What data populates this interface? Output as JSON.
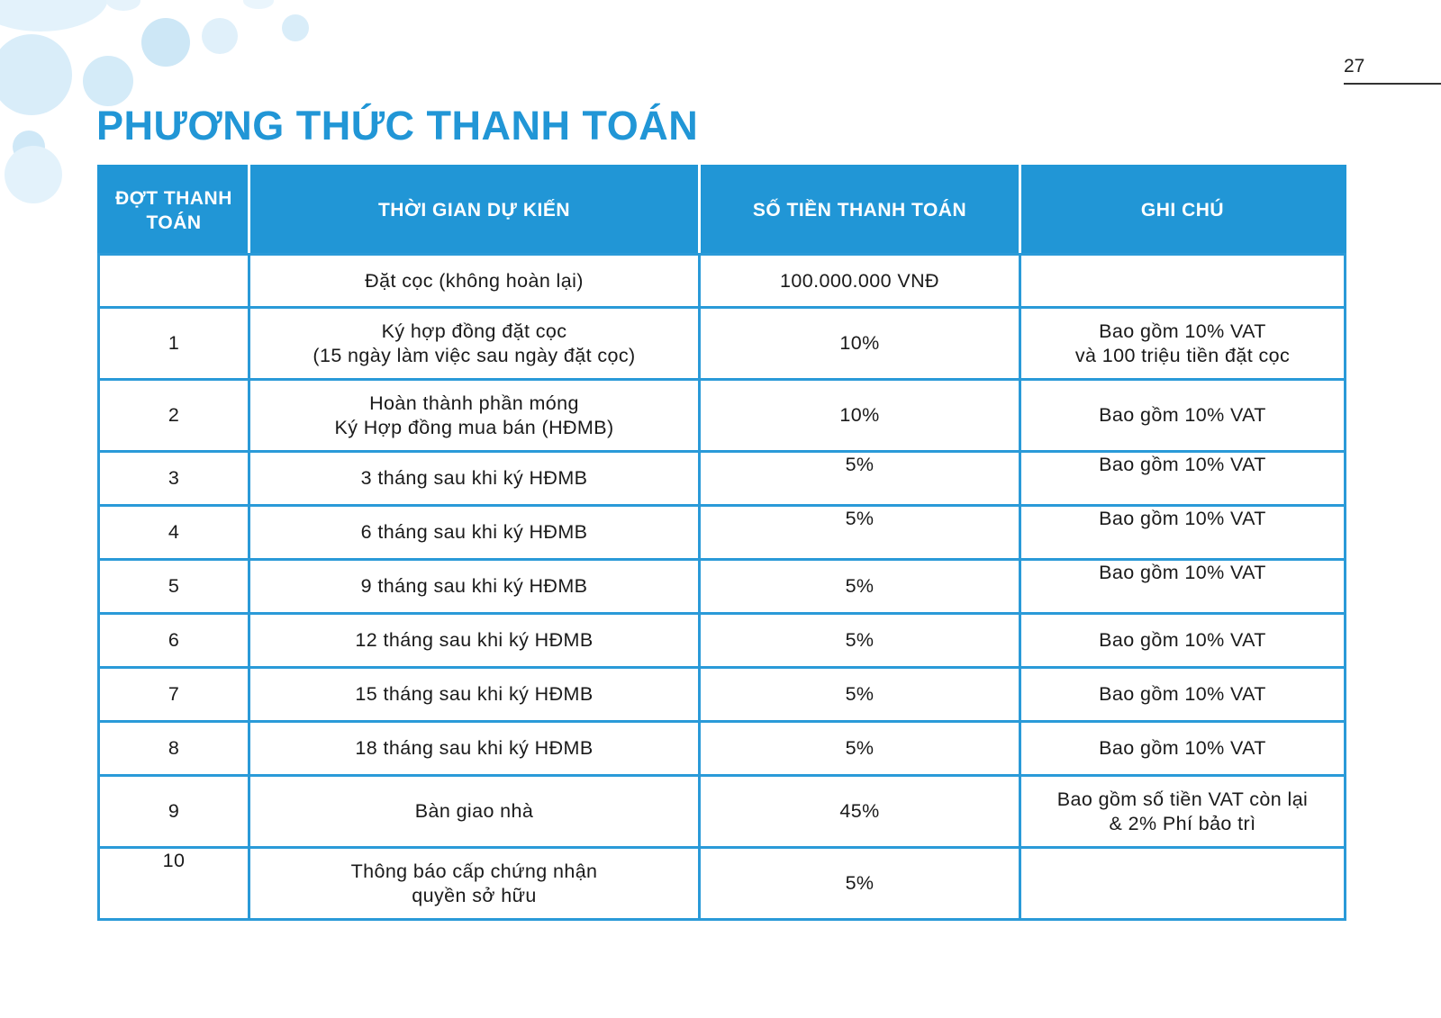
{
  "page_number": "27",
  "title": "PHƯƠNG THỨC THANH TOÁN",
  "table": {
    "headers": [
      "ĐỢT THANH TOÁN",
      "THỜI GIAN DỰ KIẾN",
      "SỐ TIỀN THANH TOÁN",
      "GHI CHÚ"
    ],
    "rows": [
      {
        "phase": "",
        "time": [
          "Đặt cọc (không hoàn lại)"
        ],
        "amount": "100.000.000 VNĐ",
        "note": []
      },
      {
        "phase": "1",
        "time": [
          "Ký hợp đồng đặt cọc",
          "(15 ngày làm việc sau ngày đặt cọc)"
        ],
        "amount": "10%",
        "note": [
          "Bao gồm 10% VAT",
          "và 100 triệu tiền đặt cọc"
        ]
      },
      {
        "phase": "2",
        "time": [
          "Hoàn thành phần móng",
          "Ký Hợp đồng mua bán (HĐMB)"
        ],
        "amount": "10%",
        "note": [
          "Bao gồm 10% VAT"
        ]
      },
      {
        "phase": "3",
        "time": [
          "3 tháng sau khi ký HĐMB"
        ],
        "amount": "5%",
        "note": [
          "Bao gồm 10% VAT"
        ]
      },
      {
        "phase": "4",
        "time": [
          "6 tháng sau khi ký HĐMB"
        ],
        "amount": "5%",
        "note": [
          "Bao gồm 10% VAT"
        ]
      },
      {
        "phase": "5",
        "time": [
          "9 tháng sau khi ký HĐMB"
        ],
        "amount": "5%",
        "note": [
          "Bao gồm 10% VAT"
        ]
      },
      {
        "phase": "6",
        "time": [
          "12 tháng sau khi ký HĐMB"
        ],
        "amount": "5%",
        "note": [
          "Bao gồm 10% VAT"
        ]
      },
      {
        "phase": "7",
        "time": [
          "15 tháng sau khi ký HĐMB"
        ],
        "amount": "5%",
        "note": [
          "Bao gồm 10% VAT"
        ]
      },
      {
        "phase": "8",
        "time": [
          "18 tháng sau khi ký HĐMB"
        ],
        "amount": "5%",
        "note": [
          "Bao gồm 10% VAT"
        ]
      },
      {
        "phase": "9",
        "time": [
          "Bàn giao nhà"
        ],
        "amount": "45%",
        "note": [
          "Bao gồm số tiền VAT còn lại",
          "& 2% Phí bảo trì"
        ]
      },
      {
        "phase": "10",
        "time": [
          "Thông báo cấp chứng nhận",
          "quyền sở hữu"
        ],
        "amount": "5%",
        "note": []
      }
    ]
  },
  "colors": {
    "accent": "#2196d6",
    "border": "#2a9ad8",
    "bubble": "#d6ecf8"
  }
}
